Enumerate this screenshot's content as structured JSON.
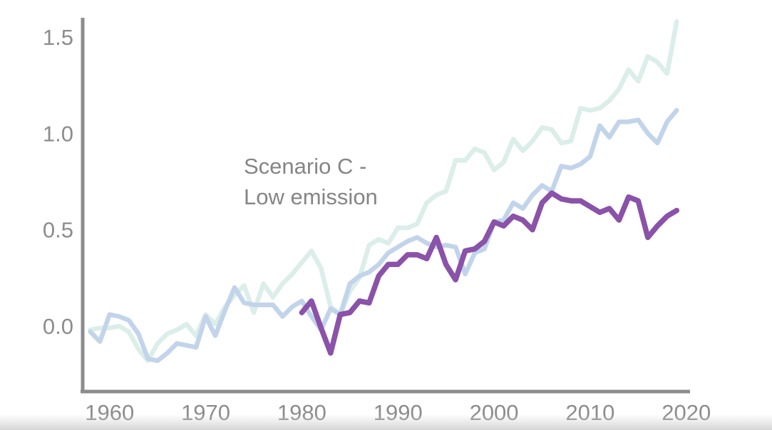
{
  "chart_data": {
    "type": "line",
    "title": "",
    "xlabel": "",
    "ylabel": "",
    "xlim": [
      1957.5,
      2019.5
    ],
    "ylim": [
      -0.35,
      1.6
    ],
    "x_ticks": [
      1960,
      1970,
      1980,
      1990,
      2000,
      2010,
      2020
    ],
    "x_tick_labels": [
      "1960",
      "1970",
      "1980",
      "1990",
      "2000",
      "2010",
      "2020"
    ],
    "y_ticks": [
      0.0,
      0.5,
      1.0,
      1.5
    ],
    "y_tick_labels": [
      "0.0",
      "0.5",
      "1.0",
      "1.5"
    ],
    "grid": false,
    "annotation": {
      "lines": [
        "Scenario C -",
        "Low emission"
      ],
      "anchor": [
        1974.3,
        0.84
      ]
    },
    "series": [
      {
        "color": "#dbeee9",
        "x": [
          1958,
          1959,
          1960,
          1961,
          1962,
          1963,
          1964,
          1965,
          1966,
          1967,
          1968,
          1969,
          1970,
          1971,
          1972,
          1973,
          1974,
          1975,
          1976,
          1977,
          1978,
          1979,
          1980,
          1981,
          1982,
          1983,
          1984,
          1985,
          1986,
          1987,
          1988,
          1989,
          1990,
          1991,
          1992,
          1993,
          1994,
          1995,
          1996,
          1997,
          1998,
          1999,
          2000,
          2001,
          2002,
          2003,
          2004,
          2005,
          2006,
          2007,
          2008,
          2009,
          2010,
          2011,
          2012,
          2013,
          2014,
          2015,
          2016,
          2017,
          2018,
          2019
        ],
        "y": [
          -0.02,
          -0.01,
          -0.01,
          0.0,
          -0.03,
          -0.12,
          -0.18,
          -0.09,
          -0.04,
          -0.02,
          0.01,
          -0.05,
          0.06,
          0.01,
          0.1,
          0.16,
          0.21,
          0.07,
          0.22,
          0.15,
          0.22,
          0.27,
          0.33,
          0.39,
          0.3,
          0.1,
          0.06,
          0.18,
          0.25,
          0.42,
          0.45,
          0.43,
          0.51,
          0.51,
          0.53,
          0.64,
          0.68,
          0.7,
          0.86,
          0.86,
          0.92,
          0.9,
          0.81,
          0.85,
          0.97,
          0.91,
          0.96,
          1.03,
          1.02,
          0.95,
          0.96,
          1.13,
          1.12,
          1.13,
          1.17,
          1.23,
          1.33,
          1.27,
          1.4,
          1.37,
          1.31,
          1.58
        ]
      },
      {
        "color": "#c2d4ea",
        "x": [
          1958,
          1959,
          1960,
          1961,
          1962,
          1963,
          1964,
          1965,
          1966,
          1967,
          1968,
          1969,
          1970,
          1971,
          1972,
          1973,
          1974,
          1975,
          1976,
          1977,
          1978,
          1979,
          1980,
          1981,
          1982,
          1983,
          1984,
          1985,
          1986,
          1987,
          1988,
          1989,
          1990,
          1991,
          1992,
          1993,
          1994,
          1995,
          1996,
          1997,
          1998,
          1999,
          2000,
          2001,
          2002,
          2003,
          2004,
          2005,
          2006,
          2007,
          2008,
          2009,
          2010,
          2011,
          2012,
          2013,
          2014,
          2015,
          2016,
          2017,
          2018,
          2019
        ],
        "y": [
          -0.03,
          -0.08,
          0.06,
          0.05,
          0.03,
          -0.04,
          -0.17,
          -0.18,
          -0.14,
          -0.09,
          -0.1,
          -0.11,
          0.05,
          -0.05,
          0.08,
          0.2,
          0.12,
          0.11,
          0.11,
          0.11,
          0.05,
          0.1,
          0.13,
          0.05,
          -0.02,
          0.09,
          0.06,
          0.22,
          0.26,
          0.28,
          0.32,
          0.38,
          0.41,
          0.44,
          0.46,
          0.43,
          0.41,
          0.42,
          0.41,
          0.27,
          0.38,
          0.4,
          0.54,
          0.55,
          0.64,
          0.61,
          0.68,
          0.73,
          0.7,
          0.83,
          0.82,
          0.84,
          0.88,
          1.04,
          0.98,
          1.06,
          1.06,
          1.07,
          1.0,
          0.95,
          1.06,
          1.12
        ]
      },
      {
        "color": "#8a52a8",
        "x": [
          1980,
          1981,
          1982,
          1983,
          1984,
          1985,
          1986,
          1987,
          1988,
          1989,
          1990,
          1991,
          1992,
          1993,
          1994,
          1995,
          1996,
          1997,
          1998,
          1999,
          2000,
          2001,
          2002,
          2003,
          2004,
          2005,
          2006,
          2007,
          2008,
          2009,
          2010,
          2011,
          2012,
          2013,
          2014,
          2015,
          2016,
          2017,
          2018,
          2019
        ],
        "y": [
          0.07,
          0.13,
          -0.01,
          -0.14,
          0.06,
          0.07,
          0.13,
          0.12,
          0.26,
          0.32,
          0.32,
          0.37,
          0.37,
          0.35,
          0.46,
          0.32,
          0.24,
          0.39,
          0.4,
          0.44,
          0.54,
          0.52,
          0.57,
          0.55,
          0.5,
          0.64,
          0.69,
          0.66,
          0.65,
          0.65,
          0.62,
          0.59,
          0.61,
          0.55,
          0.67,
          0.65,
          0.46,
          0.52,
          0.57,
          0.6
        ]
      }
    ]
  }
}
